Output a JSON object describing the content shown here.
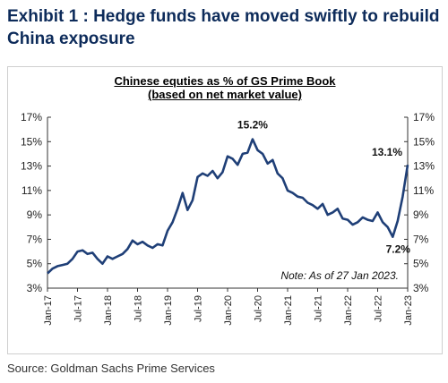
{
  "header": {
    "title": "Exhibit 1 : Hedge funds have moved swiftly to rebuild China exposure"
  },
  "source": "Source: Goldman Sachs Prime Services",
  "colors": {
    "line": "#1f3f77",
    "title": "#0d2b5a"
  },
  "chart_data": {
    "type": "line",
    "title": "Chinese equties as % of GS Prime Book",
    "subtitle": "(based on net market value)",
    "xlabel": "",
    "ylabel": "",
    "x_ticks": [
      "Jan-17",
      "Jul-17",
      "Jan-18",
      "Jul-18",
      "Jan-19",
      "Jul-19",
      "Jan-20",
      "Jul-20",
      "Jan-21",
      "Jul-21",
      "Jan-22",
      "Jul-22",
      "Jan-23"
    ],
    "y_ticks_left": [
      "3%",
      "5%",
      "7%",
      "9%",
      "11%",
      "13%",
      "15%",
      "17%"
    ],
    "y_ticks_right": [
      "3%",
      "5%",
      "7%",
      "9%",
      "11%",
      "13%",
      "15%",
      "17%"
    ],
    "ylim": [
      3,
      17
    ],
    "xlim": [
      "2017-01",
      "2023-01"
    ],
    "grid": false,
    "note": "Note: As of 27 Jan 2023.",
    "annotations": [
      {
        "text": "15.2%",
        "x": "2020-06",
        "y": 15.2
      },
      {
        "text": "13.1%",
        "x": "2023-01",
        "y": 13.1
      },
      {
        "text": "7.2%",
        "x": "2022-10",
        "y": 7.2
      }
    ],
    "series": [
      {
        "x": [
          "2017-01",
          "2017-02",
          "2017-03",
          "2017-04",
          "2017-05",
          "2017-06",
          "2017-07",
          "2017-08",
          "2017-09",
          "2017-10",
          "2017-11",
          "2017-12",
          "2018-01",
          "2018-02",
          "2018-03",
          "2018-04",
          "2018-05",
          "2018-06",
          "2018-07",
          "2018-08",
          "2018-09",
          "2018-10",
          "2018-11",
          "2018-12",
          "2019-01",
          "2019-02",
          "2019-03",
          "2019-04",
          "2019-05",
          "2019-06",
          "2019-07",
          "2019-08",
          "2019-09",
          "2019-10",
          "2019-11",
          "2019-12",
          "2020-01",
          "2020-02",
          "2020-03",
          "2020-04",
          "2020-05",
          "2020-06",
          "2020-07",
          "2020-08",
          "2020-09",
          "2020-10",
          "2020-11",
          "2020-12",
          "2021-01",
          "2021-02",
          "2021-03",
          "2021-04",
          "2021-05",
          "2021-06",
          "2021-07",
          "2021-08",
          "2021-09",
          "2021-10",
          "2021-11",
          "2021-12",
          "2022-01",
          "2022-02",
          "2022-03",
          "2022-04",
          "2022-05",
          "2022-06",
          "2022-07",
          "2022-08",
          "2022-09",
          "2022-10",
          "2022-11",
          "2022-12",
          "2023-01"
        ],
        "values": [
          4.2,
          4.6,
          4.8,
          4.9,
          5.0,
          5.4,
          6.0,
          6.1,
          5.8,
          5.9,
          5.4,
          5.0,
          5.6,
          5.4,
          5.6,
          5.8,
          6.2,
          6.9,
          6.6,
          6.8,
          6.5,
          6.3,
          6.6,
          6.5,
          7.7,
          8.4,
          9.5,
          10.8,
          9.4,
          10.2,
          12.1,
          12.4,
          12.2,
          12.6,
          12.0,
          12.5,
          13.8,
          13.6,
          13.1,
          14.0,
          14.1,
          15.2,
          14.3,
          14.0,
          13.2,
          13.5,
          12.4,
          12.0,
          11.0,
          10.8,
          10.5,
          10.4,
          10.0,
          9.8,
          9.5,
          9.9,
          9.0,
          9.2,
          9.5,
          8.7,
          8.6,
          8.2,
          8.4,
          8.8,
          8.6,
          8.5,
          9.2,
          8.4,
          8.0,
          7.2,
          8.5,
          10.5,
          13.1
        ]
      }
    ]
  }
}
